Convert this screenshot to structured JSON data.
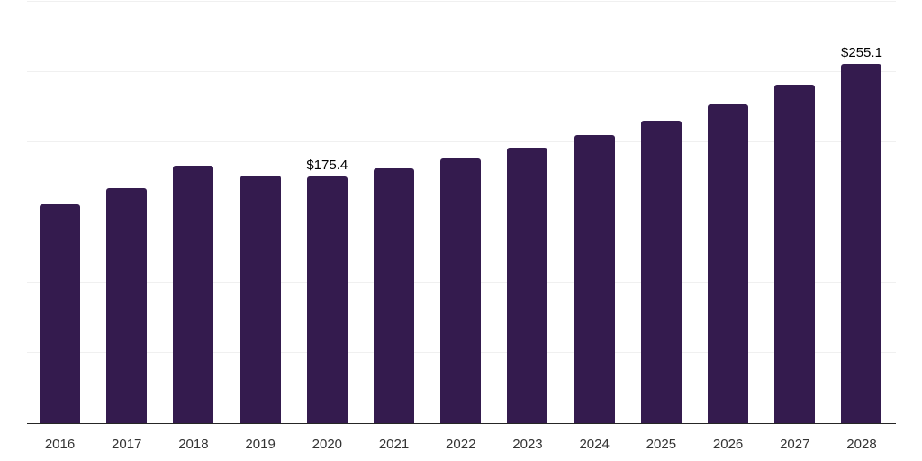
{
  "chart_data": {
    "type": "bar",
    "title": "",
    "xlabel": "",
    "ylabel": "",
    "categories": [
      "2016",
      "2017",
      "2018",
      "2019",
      "2020",
      "2021",
      "2022",
      "2023",
      "2024",
      "2025",
      "2026",
      "2027",
      "2028"
    ],
    "values": [
      155.2,
      166.9,
      182.9,
      175.6,
      175.4,
      180.9,
      188.2,
      195.8,
      204.7,
      214.7,
      226.6,
      240.3,
      255.1
    ],
    "bar_labels": [
      "",
      "",
      "",
      "",
      "$175.4",
      "",
      "",
      "",
      "",
      "",
      "",
      "",
      "$255.1"
    ],
    "ylim": [
      0,
      300
    ],
    "gridline_values": [
      50,
      100,
      150,
      200,
      250,
      300
    ],
    "grid": "on",
    "legend": "none",
    "y_axis_labels_visible": false,
    "colors": {
      "bar": "#341B4E",
      "grid": "#f0f0f0",
      "axis": "#262626",
      "tick_label": "#333333",
      "value_label": "#000000",
      "background": "#ffffff"
    }
  }
}
